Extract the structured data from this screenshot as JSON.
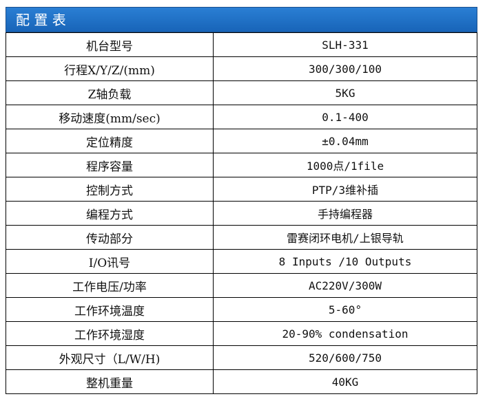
{
  "header": {
    "title": "配 置 表"
  },
  "table": {
    "rows": [
      [
        "机台型号",
        "SLH-331"
      ],
      [
        "行程X/Y/Z/(mm)",
        "300/300/100"
      ],
      [
        "Z轴负载",
        "5KG"
      ],
      [
        "移动速度(mm/sec)",
        "0.1-400"
      ],
      [
        "定位精度",
        "±0.04mm"
      ],
      [
        "程序容量",
        "1000点/1file"
      ],
      [
        "控制方式",
        "PTP/3维补插"
      ],
      [
        "编程方式",
        "手持编程器"
      ],
      [
        "传动部分",
        "雷赛闭环电机/上银导轨"
      ],
      [
        "I/O讯号",
        "8 Inputs /10 Outputs"
      ],
      [
        "工作电压/功率",
        "AC220V/300W"
      ],
      [
        "工作环境温度",
        "5-60°"
      ],
      [
        "工作环境湿度",
        "20-90% condensation"
      ],
      [
        "外观尺寸（L/W/H)",
        "520/600/750"
      ],
      [
        "整机重量",
        "40KG"
      ]
    ]
  }
}
